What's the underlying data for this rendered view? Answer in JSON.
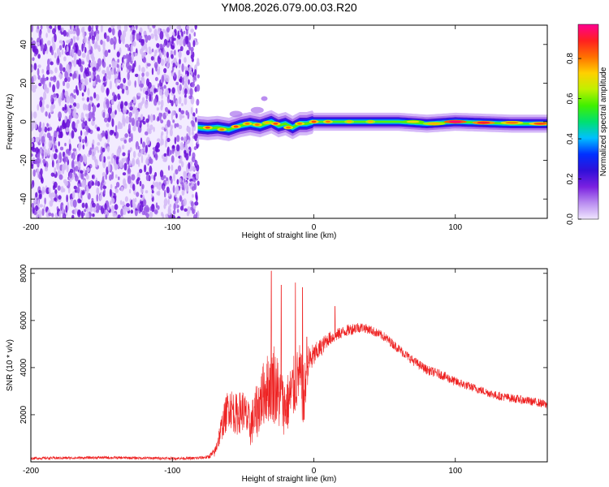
{
  "title": "YM08.2026.079.00.03.R20",
  "chart_data": [
    {
      "type": "heatmap",
      "name": "spectrogram",
      "xlabel": "Height of straight line (km)",
      "ylabel": "Frequency (Hz)",
      "xlim": [
        -200,
        165
      ],
      "ylim": [
        -50,
        50
      ],
      "xticks": [
        -200,
        -100,
        0,
        100
      ],
      "xtick_labels": [
        "-200",
        "-100",
        "0",
        "100"
      ],
      "yticks": [
        -40,
        -20,
        0,
        20,
        40
      ],
      "ytick_labels": [
        "-40",
        "-20",
        "0",
        "20",
        "40"
      ],
      "noise_region_x": [
        -200,
        -85
      ],
      "ridge": [
        {
          "x": -82,
          "f": -3
        },
        {
          "x": -75,
          "f": -3.5
        },
        {
          "x": -68,
          "f": -3
        },
        {
          "x": -60,
          "f": -4
        },
        {
          "x": -52,
          "f": -2
        },
        {
          "x": -45,
          "f": -1
        },
        {
          "x": -38,
          "f": -2
        },
        {
          "x": -30,
          "f": 0
        },
        {
          "x": -25,
          "f": -2
        },
        {
          "x": -20,
          "f": -1
        },
        {
          "x": -15,
          "f": -3
        },
        {
          "x": -10,
          "f": -1
        },
        {
          "x": -5,
          "f": -1
        },
        {
          "x": 0,
          "f": 0
        },
        {
          "x": 20,
          "f": 0
        },
        {
          "x": 40,
          "f": 0
        },
        {
          "x": 60,
          "f": 0
        },
        {
          "x": 80,
          "f": -1
        },
        {
          "x": 100,
          "f": 0
        },
        {
          "x": 120,
          "f": -0.5
        },
        {
          "x": 140,
          "f": -1
        },
        {
          "x": 165,
          "f": -1
        }
      ],
      "hotspots": [
        {
          "x": -75,
          "f": -3,
          "v": 0.85
        },
        {
          "x": -65,
          "f": -4,
          "v": 0.8
        },
        {
          "x": -55,
          "f": -2.5,
          "v": 0.85
        },
        {
          "x": -47,
          "f": -1,
          "v": 0.8
        },
        {
          "x": -40,
          "f": -1.5,
          "v": 0.8
        },
        {
          "x": -33,
          "f": -0.5,
          "v": 0.75
        },
        {
          "x": -27,
          "f": -1,
          "v": 0.85
        },
        {
          "x": -18,
          "f": -3,
          "v": 0.8
        },
        {
          "x": -10,
          "f": -1,
          "v": 0.8
        },
        {
          "x": 0,
          "f": 0,
          "v": 0.85
        },
        {
          "x": 10,
          "f": 0,
          "v": 0.8
        },
        {
          "x": 25,
          "f": 0,
          "v": 0.75
        },
        {
          "x": 40,
          "f": 0,
          "v": 0.75
        },
        {
          "x": 70,
          "f": 0,
          "v": 0.7
        },
        {
          "x": 85,
          "f": -1,
          "v": 0.75
        },
        {
          "x": 100,
          "f": 0,
          "v": 0.95
        },
        {
          "x": 120,
          "f": -0.5,
          "v": 0.9
        },
        {
          "x": 140,
          "f": -0.5,
          "v": 0.8
        },
        {
          "x": 160,
          "f": -1,
          "v": 0.85
        }
      ],
      "colorbar": {
        "label": "Normalized spectral amplitude",
        "range": [
          0.0,
          0.97
        ],
        "ticks": [
          0.0,
          0.2,
          0.4,
          0.6,
          0.8
        ],
        "tick_labels": [
          "0.0",
          "0.2",
          "0.4",
          "0.6",
          "0.8"
        ],
        "stops": [
          "#f0e6ff",
          "#b98cf0",
          "#7a20e0",
          "#3010d8",
          "#0030ff",
          "#00c0ff",
          "#00e070",
          "#40f000",
          "#c0f000",
          "#ffd000",
          "#ff7000",
          "#ff2020",
          "#ff0090"
        ]
      }
    },
    {
      "type": "line",
      "name": "snr",
      "xlabel": "Height of straight line (km)",
      "ylabel": "SNR (10 * v/v)",
      "xlim": [
        -200,
        165
      ],
      "ylim": [
        0,
        8200
      ],
      "xticks": [
        -200,
        -100,
        0,
        100
      ],
      "xtick_labels": [
        "-200",
        "-100",
        "0",
        "100"
      ],
      "yticks": [
        2000,
        4000,
        6000,
        8000
      ],
      "ytick_labels": [
        "2000",
        "4000",
        "6000",
        "8000"
      ],
      "color": "#ee2222",
      "x": [
        -200,
        -150,
        -100,
        -85,
        -75,
        -70,
        -65,
        -60,
        -55,
        -50,
        -45,
        -40,
        -35,
        -30,
        -28,
        -25,
        -20,
        -15,
        -10,
        -7,
        -5,
        -3,
        0,
        10,
        20,
        30,
        35,
        40,
        50,
        60,
        70,
        80,
        90,
        100,
        110,
        120,
        130,
        140,
        150,
        160,
        165
      ],
      "mean": [
        150,
        180,
        150,
        150,
        200,
        400,
        1500,
        2400,
        2000,
        2200,
        1500,
        2200,
        3000,
        3300,
        3400,
        2800,
        2300,
        3000,
        3800,
        2500,
        4000,
        4300,
        4500,
        5200,
        5500,
        5700,
        5700,
        5600,
        5300,
        4800,
        4300,
        3900,
        3700,
        3400,
        3200,
        3000,
        2800,
        2700,
        2600,
        2500,
        2400
      ],
      "spread": [
        60,
        60,
        60,
        60,
        80,
        200,
        600,
        900,
        900,
        900,
        900,
        1200,
        1400,
        1600,
        1800,
        1500,
        1200,
        1400,
        1200,
        1500,
        900,
        700,
        500,
        300,
        250,
        250,
        200,
        200,
        200,
        200,
        200,
        200,
        200,
        200,
        180,
        180,
        180,
        180,
        180,
        180,
        180
      ],
      "spikes": [
        {
          "x": -30,
          "y": 8100
        },
        {
          "x": -23,
          "y": 7500
        },
        {
          "x": -13,
          "y": 7600
        },
        {
          "x": -8,
          "y": 7400
        },
        {
          "x": -5,
          "y": 5300
        },
        {
          "x": 15,
          "y": 6600
        }
      ]
    }
  ]
}
